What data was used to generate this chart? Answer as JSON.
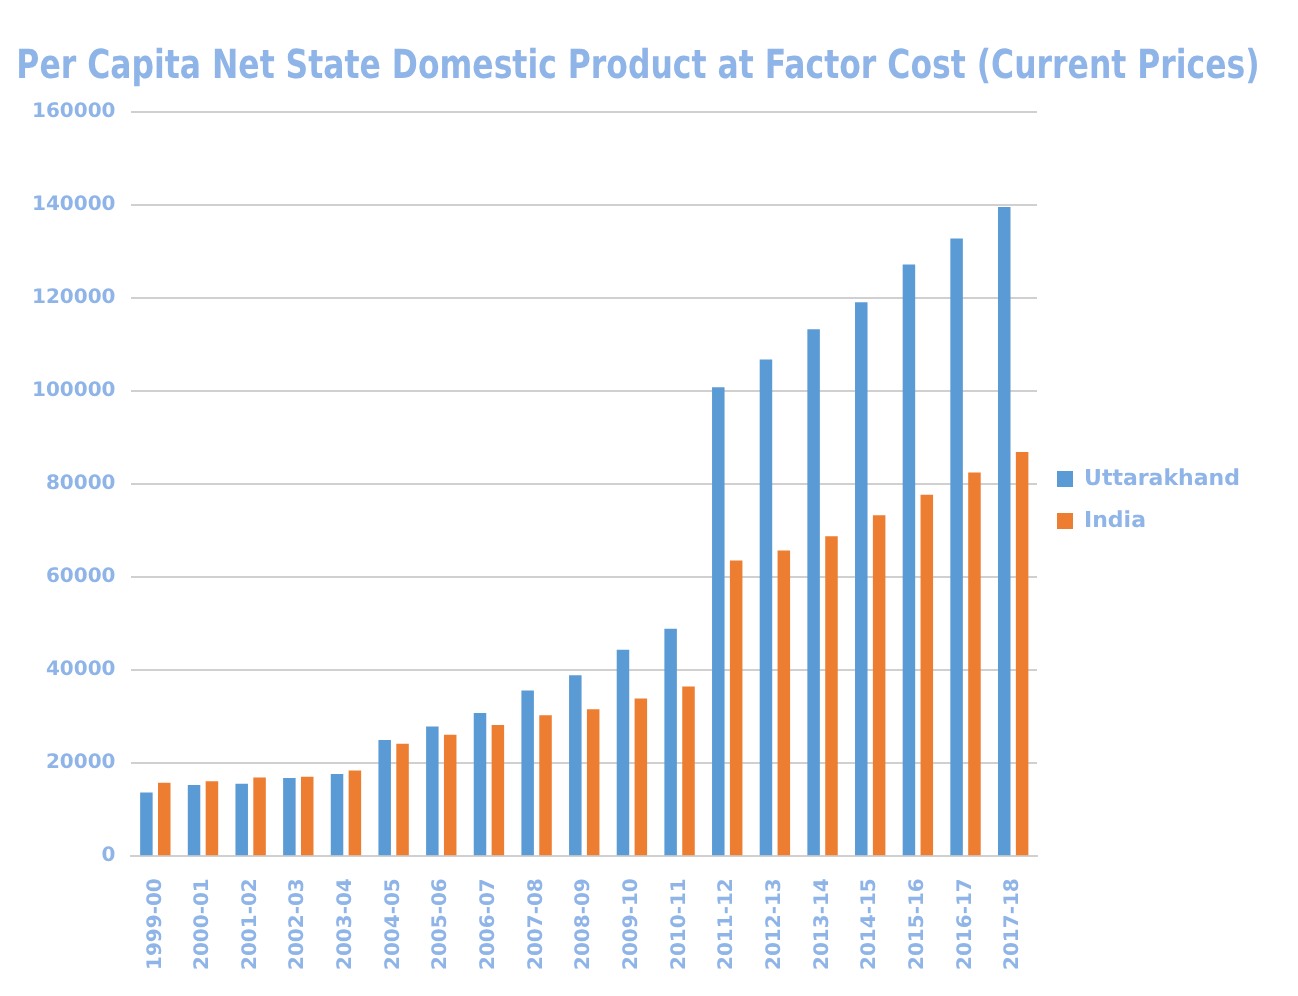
{
  "chart_data": {
    "type": "bar",
    "title": "Per Capita Net State Domestic Product at Factor Cost (Current Prices)",
    "categories": [
      "1999-00",
      "2000-01",
      "2001-02",
      "2002-03",
      "2003-04",
      "2004-05",
      "2005-06",
      "2006-07",
      "2007-08",
      "2008-09",
      "2009-10",
      "2010-11",
      "2011-12",
      "2012-13",
      "2013-14",
      "2014-15",
      "2015-16",
      "2016-17",
      "2017-18"
    ],
    "series": [
      {
        "name": "Uttarakhand",
        "color": "#5b9bd5",
        "values": [
          13700,
          15300,
          15600,
          16800,
          17700,
          25000,
          27900,
          30800,
          35600,
          38900,
          44400,
          48900,
          100800,
          106800,
          113300,
          119100,
          127200,
          132800,
          139600
        ]
      },
      {
        "name": "India",
        "color": "#ed7d31",
        "values": [
          15800,
          16100,
          16900,
          17100,
          18400,
          24200,
          26100,
          28200,
          30300,
          31600,
          33900,
          36500,
          63600,
          65700,
          68800,
          73300,
          77700,
          82500,
          86900
        ]
      }
    ],
    "ylim": [
      0,
      160000
    ],
    "yticks": [
      0,
      20000,
      40000,
      60000,
      80000,
      100000,
      120000,
      140000,
      160000
    ],
    "grid": "y",
    "legend": "right"
  }
}
